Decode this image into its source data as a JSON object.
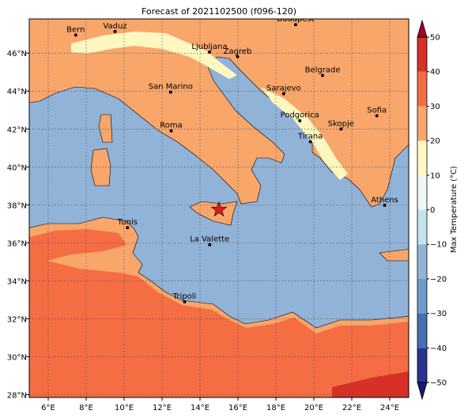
{
  "map": {
    "title": "Forecast of 2021102500 (f096-120)",
    "xlim": [
      5,
      25
    ],
    "ylim": [
      27.85,
      47.8
    ],
    "xticks": [
      {
        "value": 6,
        "label": "6°E"
      },
      {
        "value": 8,
        "label": "8°E"
      },
      {
        "value": 10,
        "label": "10°E"
      },
      {
        "value": 12,
        "label": "12°E"
      },
      {
        "value": 14,
        "label": "14°E"
      },
      {
        "value": 16,
        "label": "16°E"
      },
      {
        "value": 18,
        "label": "18°E"
      },
      {
        "value": 20,
        "label": "20°E"
      },
      {
        "value": 22,
        "label": "22°E"
      },
      {
        "value": 24,
        "label": "24°E"
      }
    ],
    "yticks": [
      {
        "value": 28,
        "label": "28°N"
      },
      {
        "value": 30,
        "label": "30°N"
      },
      {
        "value": 32,
        "label": "32°N"
      },
      {
        "value": 34,
        "label": "34°N"
      },
      {
        "value": 36,
        "label": "36°N"
      },
      {
        "value": 38,
        "label": "38°N"
      },
      {
        "value": 40,
        "label": "40°N"
      },
      {
        "value": 42,
        "label": "42°N"
      },
      {
        "value": 44,
        "label": "44°N"
      },
      {
        "value": 46,
        "label": "46°N"
      }
    ],
    "grid": true,
    "cities": [
      {
        "name": "Bern",
        "lon": 7.45,
        "lat": 46.95
      },
      {
        "name": "Vaduz",
        "lon": 9.52,
        "lat": 47.14
      },
      {
        "name": "Budapest",
        "lon": 19.04,
        "lat": 47.5
      },
      {
        "name": "Ljubljana",
        "lon": 14.5,
        "lat": 46.05
      },
      {
        "name": "Zagreb",
        "lon": 15.98,
        "lat": 45.81
      },
      {
        "name": "Belgrade",
        "lon": 20.46,
        "lat": 44.82
      },
      {
        "name": "San Marino",
        "lon": 12.45,
        "lat": 43.94
      },
      {
        "name": "Sarajevo",
        "lon": 18.41,
        "lat": 43.86
      },
      {
        "name": "Podgorica",
        "lon": 19.26,
        "lat": 42.44
      },
      {
        "name": "Roma",
        "lon": 12.48,
        "lat": 41.9
      },
      {
        "name": "Sofia",
        "lon": 23.32,
        "lat": 42.7
      },
      {
        "name": "Skopje",
        "lon": 21.43,
        "lat": 42.0
      },
      {
        "name": "Tirana",
        "lon": 19.82,
        "lat": 41.33
      },
      {
        "name": "Athens",
        "lon": 23.73,
        "lat": 37.98
      },
      {
        "name": "Tunis",
        "lon": 10.18,
        "lat": 36.8
      },
      {
        "name": "La Valette",
        "lon": 14.51,
        "lat": 35.9
      },
      {
        "name": "Tripoli",
        "lon": 13.19,
        "lat": 32.89
      }
    ],
    "star": {
      "lon": 15.0,
      "lat": 37.75,
      "color": "#e31a1c"
    }
  },
  "colorbar": {
    "label": "Max Temperature (°C)",
    "lim": [
      -50,
      50
    ],
    "levels": [
      -50,
      -40,
      -30,
      -20,
      -10,
      0,
      10,
      20,
      30,
      40,
      50
    ],
    "colors": [
      "#2b3391",
      "#4470b0",
      "#6d9bc9",
      "#91b3d7",
      "#c6e2ee",
      "#eef8f6",
      "#fef7bf",
      "#f9a66b",
      "#f46d43",
      "#d73027"
    ],
    "under": "#161a6e",
    "over": "#a50026",
    "ticks": [
      {
        "value": -50,
        "label": "−50"
      },
      {
        "value": -40,
        "label": "−40"
      },
      {
        "value": -30,
        "label": "−30"
      },
      {
        "value": -20,
        "label": "−20"
      },
      {
        "value": -10,
        "label": "−10"
      },
      0,
      10,
      20,
      30,
      40,
      50
    ]
  }
}
